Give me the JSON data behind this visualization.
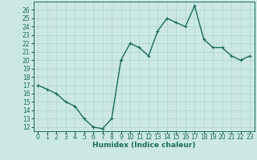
{
  "x": [
    0,
    1,
    2,
    3,
    4,
    5,
    6,
    7,
    8,
    9,
    10,
    11,
    12,
    13,
    14,
    15,
    16,
    17,
    18,
    19,
    20,
    21,
    22,
    23
  ],
  "y": [
    17.0,
    16.5,
    16.0,
    15.0,
    14.5,
    13.0,
    12.0,
    11.8,
    13.0,
    20.0,
    22.0,
    21.5,
    20.5,
    23.5,
    25.0,
    24.5,
    24.0,
    26.5,
    22.5,
    21.5,
    21.5,
    20.5,
    20.0,
    20.5
  ],
  "line_color": "#1a6b5a",
  "marker": "+",
  "markersize": 3,
  "linewidth": 1.0,
  "bg_color": "#cce8e4",
  "grid_color": "#aad4ce",
  "xlabel": "Humidex (Indice chaleur)",
  "xlim": [
    -0.5,
    23.5
  ],
  "ylim": [
    11.5,
    27
  ],
  "yticks": [
    12,
    13,
    14,
    15,
    16,
    17,
    18,
    19,
    20,
    21,
    22,
    23,
    24,
    25,
    26
  ],
  "xticks": [
    0,
    1,
    2,
    3,
    4,
    5,
    6,
    7,
    8,
    9,
    10,
    11,
    12,
    13,
    14,
    15,
    16,
    17,
    18,
    19,
    20,
    21,
    22,
    23
  ],
  "tick_fontsize": 5.5,
  "xlabel_fontsize": 6.5
}
